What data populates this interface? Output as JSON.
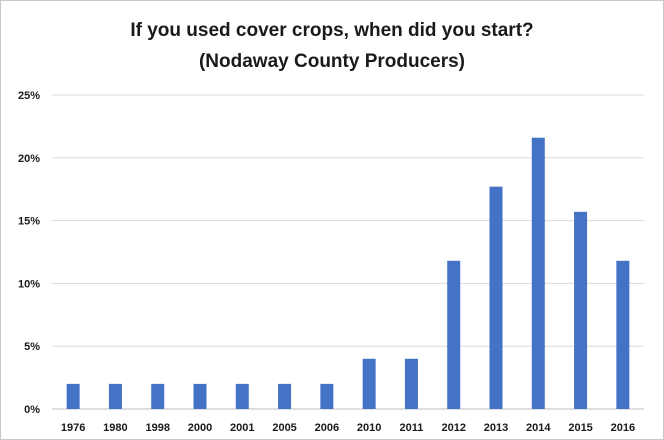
{
  "chart_data": {
    "type": "bar",
    "title": "If you used cover crops, when did you start?",
    "subtitle": "(Nodaway County Producers)",
    "categories": [
      "1976",
      "1980",
      "1998",
      "2000",
      "2001",
      "2005",
      "2006",
      "2010",
      "2011",
      "2012",
      "2013",
      "2014",
      "2015",
      "2016"
    ],
    "series": [
      {
        "values": [
          2,
          2,
          2,
          2,
          2,
          2,
          2,
          4,
          4,
          11.8,
          17.7,
          21.6,
          15.7,
          11.8
        ]
      }
    ],
    "ylim": [
      0,
      25
    ],
    "yticks": [
      0,
      5,
      10,
      15,
      20,
      25
    ],
    "ytick_labels": [
      "0%",
      "5%",
      "10%",
      "15%",
      "20%",
      "25%"
    ],
    "grid": true,
    "bar_color": "#4472c4",
    "grid_color": "#d9d9d9",
    "legend": false
  }
}
